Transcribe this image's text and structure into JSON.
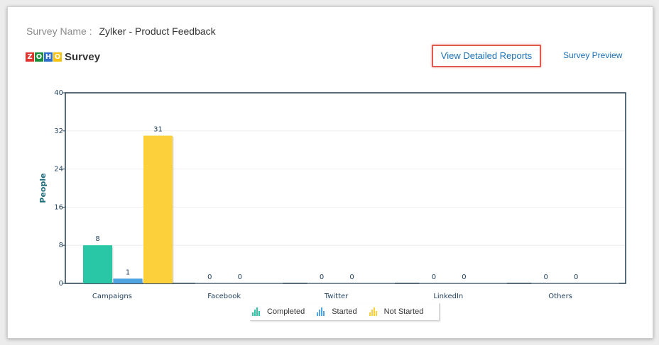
{
  "header": {
    "survey_name_label": "Survey Name :",
    "survey_name_value": "Zylker - Product Feedback",
    "logo_letters": [
      "Z",
      "O",
      "H",
      "O"
    ],
    "logo_colors": [
      "#e0342e",
      "#1a8e3d",
      "#2e6cc7",
      "#f5c20b"
    ],
    "brand_name": "Survey"
  },
  "actions": {
    "view_detailed_reports": "View Detailed Reports",
    "survey_preview": "Survey Preview"
  },
  "chart_data": {
    "type": "bar",
    "title": "",
    "xlabel": "",
    "ylabel": "People",
    "ylim": [
      0,
      40
    ],
    "yticks": [
      0,
      8,
      16,
      24,
      32,
      40
    ],
    "grid": true,
    "legend_position": "bottom",
    "categories": [
      "Campaigns",
      "Facebook",
      "Twitter",
      "LinkedIn",
      "Others"
    ],
    "series": [
      {
        "name": "Completed",
        "color": "#2ac7a6",
        "values": [
          8,
          0,
          0,
          0,
          0
        ]
      },
      {
        "name": "Started",
        "color": "#4fa3e0",
        "values": [
          1,
          0,
          0,
          0,
          0
        ]
      },
      {
        "name": "Not Started",
        "color": "#fbd03a",
        "values": [
          31,
          null,
          null,
          null,
          null
        ]
      }
    ]
  },
  "legend": {
    "items": [
      {
        "label": "Completed",
        "icon": "bar-chart-icon",
        "color": "#2ac7a6"
      },
      {
        "label": "Started",
        "icon": "bar-chart-icon",
        "color": "#4fa3e0"
      },
      {
        "label": "Not Started",
        "icon": "bar-chart-icon",
        "color": "#fbd03a"
      }
    ]
  }
}
